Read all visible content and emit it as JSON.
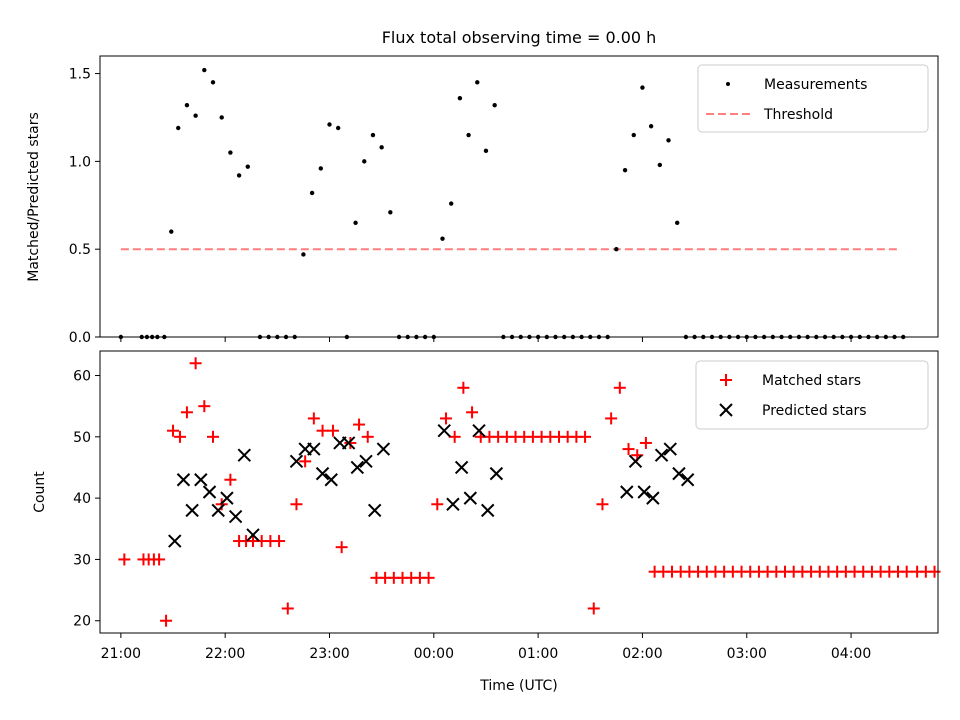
{
  "figure_title": "Flux total observing time = 0.00 h",
  "colors": {
    "measurement": "#000000",
    "threshold": "#ff7f7f",
    "matched": "#ff0000",
    "predicted": "#000000"
  },
  "chart_data": [
    {
      "type": "scatter",
      "ylabel": "Matched/Predicted stars",
      "xlabel": "",
      "xlim": [
        "20:48",
        "04:50"
      ],
      "ylim": [
        0,
        1.6
      ],
      "yticks": [
        0.0,
        0.5,
        1.0,
        1.5
      ],
      "ytick_labels": [
        "0.0",
        "0.5",
        "1.0",
        "1.5"
      ],
      "legend": {
        "position": "top-right",
        "entries": [
          "Measurements",
          "Threshold"
        ]
      },
      "threshold": {
        "name": "Threshold",
        "value": 0.5,
        "x_range": [
          "21:00",
          "04:28"
        ]
      },
      "series": [
        {
          "name": "Measurements",
          "x": [
            "21:00",
            "21:12",
            "21:15",
            "21:18",
            "21:21",
            "21:25",
            "21:29",
            "21:33",
            "21:38",
            "21:43",
            "21:48",
            "21:53",
            "21:58",
            "22:03",
            "22:08",
            "22:13",
            "22:20",
            "22:25",
            "22:30",
            "22:35",
            "22:40",
            "22:45",
            "22:50",
            "22:55",
            "23:00",
            "23:05",
            "23:10",
            "23:15",
            "23:20",
            "23:25",
            "23:30",
            "23:35",
            "23:40",
            "23:45",
            "23:50",
            "23:55",
            "00:00",
            "00:05",
            "00:10",
            "00:15",
            "00:20",
            "00:25",
            "00:30",
            "00:35",
            "00:40",
            "00:45",
            "00:50",
            "00:55",
            "01:00",
            "01:05",
            "01:10",
            "01:15",
            "01:20",
            "01:25",
            "01:30",
            "01:35",
            "01:40",
            "01:45",
            "01:50",
            "01:55",
            "02:00",
            "02:05",
            "02:10",
            "02:15",
            "02:20",
            "02:25",
            "02:30",
            "02:35",
            "02:40",
            "02:45",
            "02:50",
            "02:55",
            "03:00",
            "03:05",
            "03:10",
            "03:15",
            "03:20",
            "03:25",
            "03:30",
            "03:35",
            "03:40",
            "03:45",
            "03:50",
            "03:55",
            "04:00",
            "04:05",
            "04:10",
            "04:15",
            "04:20",
            "04:25",
            "04:30"
          ],
          "y": [
            0,
            0,
            0,
            0,
            0,
            0,
            0.6,
            1.19,
            1.32,
            1.26,
            1.52,
            1.45,
            1.25,
            1.05,
            0.92,
            0.97,
            0,
            0,
            0,
            0,
            0,
            0.47,
            0.82,
            0.96,
            1.21,
            1.19,
            0,
            0.65,
            1.0,
            1.15,
            1.08,
            0.71,
            0,
            0,
            0,
            0,
            0,
            0.56,
            0.76,
            1.36,
            1.15,
            1.45,
            1.06,
            1.32,
            0,
            0,
            0,
            0,
            0,
            0,
            0,
            0,
            0,
            0,
            0,
            0,
            0,
            0.5,
            0.95,
            1.15,
            1.42,
            1.2,
            0.98,
            1.12,
            0.65,
            0,
            0,
            0,
            0,
            0,
            0,
            0,
            0,
            0,
            0,
            0,
            0,
            0,
            0,
            0,
            0,
            0,
            0,
            0,
            0,
            0,
            0,
            0,
            0,
            0,
            0
          ]
        }
      ]
    },
    {
      "type": "scatter",
      "ylabel": "Count",
      "xlabel": "Time (UTC)",
      "xlim": [
        "20:48",
        "04:50"
      ],
      "ylim": [
        18,
        64
      ],
      "yticks": [
        20,
        30,
        40,
        50,
        60
      ],
      "ytick_labels": [
        "20",
        "30",
        "40",
        "50",
        "60"
      ],
      "xtick_labels": [
        "21:00",
        "22:00",
        "23:00",
        "00:00",
        "01:00",
        "02:00",
        "03:00",
        "04:00"
      ],
      "legend": {
        "position": "top-right",
        "entries": [
          "Matched stars",
          "Predicted stars"
        ]
      },
      "series": [
        {
          "name": "Matched stars",
          "x": [
            "21:02",
            "21:13",
            "21:16",
            "21:19",
            "21:22",
            "21:26",
            "21:30",
            "21:34",
            "21:38",
            "21:43",
            "21:48",
            "21:53",
            "21:58",
            "22:03",
            "22:08",
            "22:12",
            "22:16",
            "22:21",
            "22:26",
            "22:31",
            "22:36",
            "22:41",
            "22:46",
            "22:51",
            "22:56",
            "23:02",
            "23:07",
            "23:12",
            "23:17",
            "23:22",
            "23:27",
            "23:32",
            "23:37",
            "23:42",
            "23:47",
            "23:52",
            "23:57",
            "00:02",
            "00:07",
            "00:12",
            "00:17",
            "00:22",
            "00:27",
            "00:32",
            "00:37",
            "00:42",
            "00:47",
            "00:52",
            "00:57",
            "01:02",
            "01:07",
            "01:12",
            "01:17",
            "01:22",
            "01:27",
            "01:32",
            "01:37",
            "01:42",
            "01:47",
            "01:52",
            "01:57",
            "02:02",
            "02:07",
            "02:12",
            "02:17",
            "02:22",
            "02:27",
            "02:32",
            "02:37",
            "02:42",
            "02:47",
            "02:52",
            "02:57",
            "03:02",
            "03:07",
            "03:12",
            "03:17",
            "03:22",
            "03:27",
            "03:32",
            "03:37",
            "03:42",
            "03:47",
            "03:52",
            "03:57",
            "04:02",
            "04:07",
            "04:12",
            "04:17",
            "04:22",
            "04:27",
            "04:32",
            "04:38",
            "04:43",
            "04:48"
          ],
          "y": [
            30,
            30,
            30,
            30,
            30,
            20,
            51,
            50,
            54,
            62,
            55,
            50,
            39,
            43,
            33,
            33,
            33,
            33,
            33,
            33,
            22,
            39,
            46,
            53,
            51,
            51,
            32,
            49,
            52,
            50,
            27,
            27,
            27,
            27,
            27,
            27,
            27,
            39,
            53,
            50,
            58,
            54,
            50,
            50,
            50,
            50,
            50,
            50,
            50,
            50,
            50,
            50,
            50,
            50,
            50,
            22,
            39,
            53,
            58,
            48,
            47,
            49,
            28,
            28,
            28,
            28,
            28,
            28,
            28,
            28,
            28,
            28,
            28,
            28,
            28,
            28,
            28,
            28,
            28,
            28,
            28,
            28,
            28,
            28,
            28,
            28,
            28,
            28,
            28,
            28,
            28,
            28,
            28,
            28,
            28
          ]
        },
        {
          "name": "Predicted stars",
          "x": [
            "21:31",
            "21:36",
            "21:41",
            "21:46",
            "21:51",
            "21:56",
            "22:01",
            "22:06",
            "22:11",
            "22:16",
            "22:41",
            "22:46",
            "22:51",
            "22:56",
            "23:01",
            "23:06",
            "23:11",
            "23:16",
            "23:21",
            "23:26",
            "23:31",
            "00:06",
            "00:11",
            "00:16",
            "00:21",
            "00:26",
            "00:31",
            "00:36",
            "01:51",
            "01:56",
            "02:01",
            "02:06",
            "02:11",
            "02:16",
            "02:21",
            "02:26"
          ],
          "y": [
            33,
            43,
            38,
            43,
            41,
            38,
            40,
            37,
            47,
            34,
            46,
            48,
            48,
            44,
            43,
            49,
            49,
            45,
            46,
            38,
            48,
            51,
            39,
            45,
            40,
            51,
            38,
            44,
            41,
            46,
            41,
            40,
            47,
            48,
            44,
            43
          ]
        }
      ]
    }
  ]
}
